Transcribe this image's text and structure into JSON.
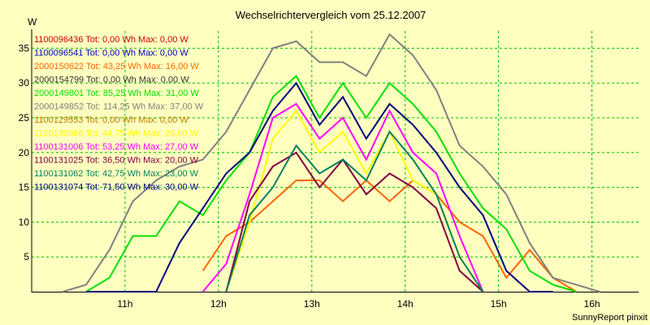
{
  "chart_data": {
    "type": "line",
    "title": "Wechselrichtervergleich vom 25.12.2007",
    "ylabel": "W",
    "footer": "SunnyReport pinxit",
    "ylim": [
      0,
      37.5
    ],
    "xlim": [
      10.0,
      16.5
    ],
    "yticks": [
      5,
      10,
      15,
      20,
      25,
      30,
      35
    ],
    "xticks": [
      {
        "value": 11,
        "label": "11h"
      },
      {
        "value": 12,
        "label": "12h"
      },
      {
        "value": 13,
        "label": "13h"
      },
      {
        "value": 14,
        "label": "14h"
      },
      {
        "value": 15,
        "label": "15h"
      },
      {
        "value": 16,
        "label": "16h"
      }
    ],
    "grid": true,
    "legend_position": "top-left",
    "series": [
      {
        "name": "1100096436 Tot: 0,00 Wh Max: 0,00 W",
        "color": "#CC0000",
        "values": []
      },
      {
        "name": "1100096541 Tot: 0,00 Wh Max: 0,00 W",
        "color": "#0000CC",
        "values": []
      },
      {
        "name": "2000150622 Tot: 43,25 Wh Max: 16,00 W",
        "color": "#FF6600",
        "values": [
          [
            11.833,
            3
          ],
          [
            12.083,
            8
          ],
          [
            12.333,
            10
          ],
          [
            12.583,
            13
          ],
          [
            12.833,
            16
          ],
          [
            13.083,
            16
          ],
          [
            13.333,
            13
          ],
          [
            13.583,
            16
          ],
          [
            13.833,
            13
          ],
          [
            14.083,
            16
          ],
          [
            14.333,
            14
          ],
          [
            14.583,
            10
          ],
          [
            14.833,
            8
          ],
          [
            15.083,
            2
          ],
          [
            15.333,
            6
          ],
          [
            15.583,
            2
          ],
          [
            15.833,
            0
          ]
        ]
      },
      {
        "name": "2000154799 Tot: 0,00 Wh Max: 0,00 W",
        "color": "#333333",
        "values": []
      },
      {
        "name": "2000149801 Tot: 85,25 Wh Max: 31,00 W",
        "color": "#00E000",
        "values": [
          [
            10.583,
            0
          ],
          [
            10.833,
            2
          ],
          [
            11.083,
            8
          ],
          [
            11.333,
            8
          ],
          [
            11.583,
            13
          ],
          [
            11.833,
            11
          ],
          [
            12.083,
            16
          ],
          [
            12.333,
            20
          ],
          [
            12.583,
            28
          ],
          [
            12.833,
            31
          ],
          [
            13.083,
            25
          ],
          [
            13.333,
            30
          ],
          [
            13.583,
            25
          ],
          [
            13.833,
            30
          ],
          [
            14.083,
            27
          ],
          [
            14.333,
            23
          ],
          [
            14.583,
            17
          ],
          [
            14.833,
            12
          ],
          [
            15.083,
            9
          ],
          [
            15.333,
            3
          ],
          [
            15.583,
            1
          ],
          [
            15.833,
            0
          ]
        ]
      },
      {
        "name": "2000149852 Tot: 114,25 Wh Max: 37,00 W",
        "color": "#808080",
        "values": [
          [
            10.333,
            0
          ],
          [
            10.583,
            1
          ],
          [
            10.833,
            6
          ],
          [
            11.083,
            13
          ],
          [
            11.333,
            16
          ],
          [
            11.583,
            18
          ],
          [
            11.833,
            19
          ],
          [
            12.083,
            23
          ],
          [
            12.333,
            29
          ],
          [
            12.583,
            35
          ],
          [
            12.833,
            36
          ],
          [
            13.083,
            33
          ],
          [
            13.333,
            33
          ],
          [
            13.583,
            31
          ],
          [
            13.833,
            37
          ],
          [
            14.083,
            34
          ],
          [
            14.333,
            29
          ],
          [
            14.583,
            21
          ],
          [
            14.833,
            18
          ],
          [
            15.083,
            14
          ],
          [
            15.333,
            7
          ],
          [
            15.583,
            2
          ],
          [
            15.833,
            1
          ],
          [
            16.083,
            0
          ]
        ]
      },
      {
        "name": "1100129553 Tot: 0,00 Wh Max: 0,00 W",
        "color": "#C08000",
        "values": []
      },
      {
        "name": "1100130968 Tot: 44,75 Wh Max: 26,00 W",
        "color": "#FFFF00",
        "values": [
          [
            12.083,
            0
          ],
          [
            12.333,
            10
          ],
          [
            12.583,
            22
          ],
          [
            12.833,
            26
          ],
          [
            13.083,
            20
          ],
          [
            13.333,
            23
          ],
          [
            13.583,
            17
          ],
          [
            13.833,
            23
          ],
          [
            14.083,
            16
          ],
          [
            14.333,
            14
          ],
          [
            14.583,
            5
          ],
          [
            14.833,
            0
          ]
        ]
      },
      {
        "name": "1100131006 Tot: 53,25 Wh Max: 27,00 W",
        "color": "#FF00FF",
        "values": [
          [
            11.833,
            0
          ],
          [
            12.083,
            4
          ],
          [
            12.333,
            14
          ],
          [
            12.583,
            25
          ],
          [
            12.833,
            27
          ],
          [
            13.083,
            22
          ],
          [
            13.333,
            25
          ],
          [
            13.583,
            19
          ],
          [
            13.833,
            26
          ],
          [
            14.083,
            20
          ],
          [
            14.333,
            17
          ],
          [
            14.583,
            8
          ],
          [
            14.833,
            0
          ]
        ]
      },
      {
        "name": "1100131025 Tot: 36,50 Wh Max: 20,00 W",
        "color": "#800040",
        "values": [
          [
            12.083,
            0
          ],
          [
            12.333,
            13
          ],
          [
            12.583,
            18
          ],
          [
            12.833,
            20
          ],
          [
            13.083,
            15
          ],
          [
            13.333,
            19
          ],
          [
            13.583,
            14
          ],
          [
            13.833,
            17
          ],
          [
            14.083,
            15
          ],
          [
            14.333,
            12
          ],
          [
            14.583,
            3
          ],
          [
            14.833,
            0
          ]
        ]
      },
      {
        "name": "1100131062 Tot: 42,75 Wh Max: 23,00 W",
        "color": "#008060",
        "values": [
          [
            12.083,
            0
          ],
          [
            12.333,
            11
          ],
          [
            12.583,
            15
          ],
          [
            12.833,
            21
          ],
          [
            13.083,
            17
          ],
          [
            13.333,
            19
          ],
          [
            13.583,
            16
          ],
          [
            13.833,
            23
          ],
          [
            14.083,
            19
          ],
          [
            14.333,
            14
          ],
          [
            14.583,
            5
          ],
          [
            14.833,
            0
          ]
        ]
      },
      {
        "name": "1100131074 Tot: 71,50 Wh Max: 30,00 W",
        "color": "#000080",
        "values": [
          [
            10.583,
            0
          ],
          [
            10.833,
            0
          ],
          [
            11.083,
            0
          ],
          [
            11.333,
            0
          ],
          [
            11.583,
            7
          ],
          [
            11.833,
            12
          ],
          [
            12.083,
            17
          ],
          [
            12.333,
            20
          ],
          [
            12.583,
            26
          ],
          [
            12.833,
            30
          ],
          [
            13.083,
            24
          ],
          [
            13.333,
            28
          ],
          [
            13.583,
            22
          ],
          [
            13.833,
            27
          ],
          [
            14.083,
            24
          ],
          [
            14.333,
            20
          ],
          [
            14.583,
            15
          ],
          [
            14.833,
            11
          ],
          [
            15.083,
            3
          ],
          [
            15.333,
            0
          ],
          [
            15.583,
            0
          ]
        ]
      }
    ]
  }
}
